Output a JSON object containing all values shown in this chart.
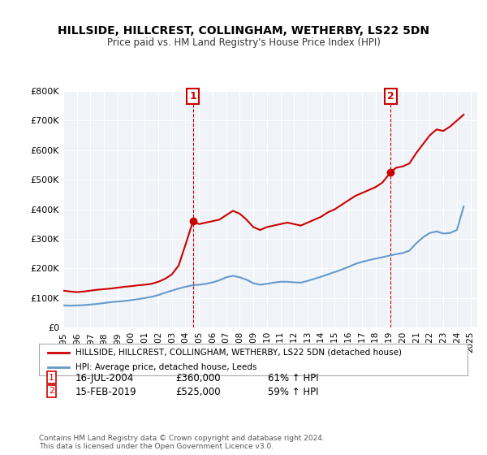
{
  "title": "HILLSIDE, HILLCREST, COLLINGHAM, WETHERBY, LS22 5DN",
  "subtitle": "Price paid vs. HM Land Registry's House Price Index (HPI)",
  "legend_label_red": "HILLSIDE, HILLCREST, COLLINGHAM, WETHERBY, LS22 5DN (detached house)",
  "legend_label_blue": "HPI: Average price, detached house, Leeds",
  "annotation1_label": "1",
  "annotation1_date": "16-JUL-2004",
  "annotation1_price": "£360,000",
  "annotation1_hpi": "61% ↑ HPI",
  "annotation2_label": "2",
  "annotation2_date": "15-FEB-2019",
  "annotation2_price": "£525,000",
  "annotation2_hpi": "59% ↑ HPI",
  "footer": "Contains HM Land Registry data © Crown copyright and database right 2024.\nThis data is licensed under the Open Government Licence v3.0.",
  "red_color": "#cc0000",
  "blue_color": "#6699cc",
  "bg_color": "#e8eef5",
  "plot_bg_color": "#f0f4f8",
  "ylim": [
    0,
    800000
  ],
  "yticks": [
    0,
    100000,
    200000,
    300000,
    400000,
    500000,
    600000,
    700000,
    800000
  ],
  "red_x": [
    1995.0,
    1995.5,
    1996.0,
    1996.5,
    1997.0,
    1997.5,
    1998.0,
    1998.5,
    1999.0,
    1999.5,
    2000.0,
    2000.5,
    2001.0,
    2001.5,
    2002.0,
    2002.5,
    2003.0,
    2003.5,
    2004.0,
    2004.56,
    2005.0,
    2005.5,
    2006.0,
    2006.5,
    2007.0,
    2007.5,
    2008.0,
    2008.5,
    2009.0,
    2009.5,
    2010.0,
    2010.5,
    2011.0,
    2011.5,
    2012.0,
    2012.5,
    2013.0,
    2013.5,
    2014.0,
    2014.5,
    2015.0,
    2015.5,
    2016.0,
    2016.5,
    2017.0,
    2017.5,
    2018.0,
    2018.5,
    2019.12,
    2019.5,
    2020.0,
    2020.5,
    2021.0,
    2021.5,
    2022.0,
    2022.5,
    2023.0,
    2023.5,
    2024.0,
    2024.5
  ],
  "red_y": [
    125000,
    122000,
    120000,
    122000,
    125000,
    128000,
    130000,
    132000,
    135000,
    138000,
    140000,
    143000,
    145000,
    148000,
    155000,
    165000,
    180000,
    210000,
    280000,
    360000,
    350000,
    355000,
    360000,
    365000,
    380000,
    395000,
    385000,
    365000,
    340000,
    330000,
    340000,
    345000,
    350000,
    355000,
    350000,
    345000,
    355000,
    365000,
    375000,
    390000,
    400000,
    415000,
    430000,
    445000,
    455000,
    465000,
    475000,
    490000,
    525000,
    540000,
    545000,
    555000,
    590000,
    620000,
    650000,
    670000,
    665000,
    680000,
    700000,
    720000
  ],
  "blue_x": [
    1995.0,
    1995.5,
    1996.0,
    1996.5,
    1997.0,
    1997.5,
    1998.0,
    1998.5,
    1999.0,
    1999.5,
    2000.0,
    2000.5,
    2001.0,
    2001.5,
    2002.0,
    2002.5,
    2003.0,
    2003.5,
    2004.0,
    2004.5,
    2005.0,
    2005.5,
    2006.0,
    2006.5,
    2007.0,
    2007.5,
    2008.0,
    2008.5,
    2009.0,
    2009.5,
    2010.0,
    2010.5,
    2011.0,
    2011.5,
    2012.0,
    2012.5,
    2013.0,
    2013.5,
    2014.0,
    2014.5,
    2015.0,
    2015.5,
    2016.0,
    2016.5,
    2017.0,
    2017.5,
    2018.0,
    2018.5,
    2019.0,
    2019.5,
    2020.0,
    2020.5,
    2021.0,
    2021.5,
    2022.0,
    2022.5,
    2023.0,
    2023.5,
    2024.0,
    2024.5
  ],
  "blue_y": [
    75000,
    74000,
    75000,
    76000,
    78000,
    80000,
    83000,
    86000,
    88000,
    90000,
    93000,
    96000,
    100000,
    104000,
    110000,
    118000,
    125000,
    132000,
    138000,
    143000,
    145000,
    148000,
    153000,
    160000,
    170000,
    175000,
    170000,
    162000,
    150000,
    145000,
    148000,
    152000,
    155000,
    155000,
    153000,
    152000,
    158000,
    165000,
    172000,
    180000,
    188000,
    196000,
    205000,
    215000,
    222000,
    228000,
    233000,
    238000,
    243000,
    248000,
    252000,
    260000,
    285000,
    305000,
    320000,
    325000,
    318000,
    320000,
    330000,
    410000
  ],
  "ann1_x": 2004.56,
  "ann1_y": 360000,
  "ann2_x": 2019.12,
  "ann2_y": 525000,
  "xticks": [
    1995,
    1996,
    1997,
    1998,
    1999,
    2000,
    2001,
    2002,
    2003,
    2004,
    2005,
    2006,
    2007,
    2008,
    2009,
    2010,
    2011,
    2012,
    2013,
    2014,
    2015,
    2016,
    2017,
    2018,
    2019,
    2020,
    2021,
    2022,
    2023,
    2024,
    2025
  ]
}
